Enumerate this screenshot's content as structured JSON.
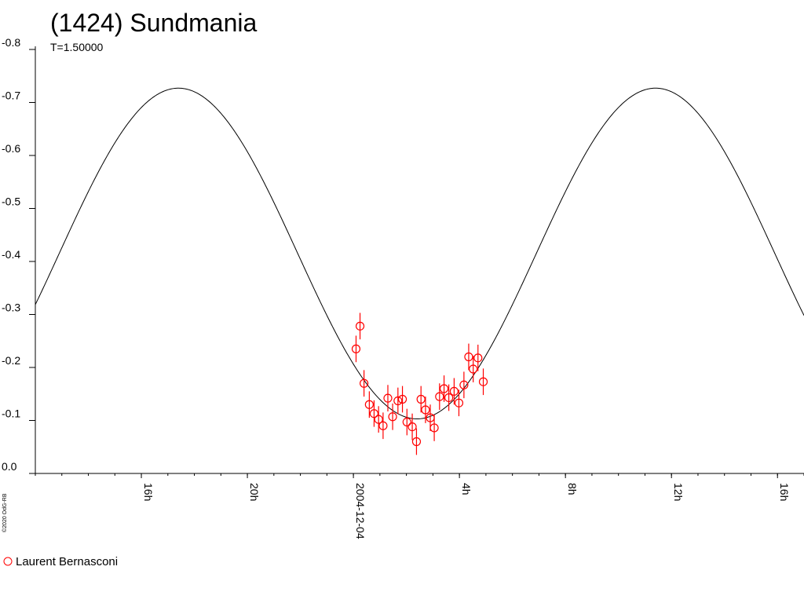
{
  "chart_data": {
    "type": "scatter",
    "title": "(1424) Sundmania",
    "subtitle": "T=1.50000",
    "copyright": "©2020 OdG-RB",
    "y_ticks": [
      "-0.8",
      "-0.7",
      "-0.6",
      "-0.5",
      "-0.4",
      "-0.3",
      "-0.2",
      "-0.1",
      "0.0"
    ],
    "y_range": [
      0.0,
      -0.8
    ],
    "x_range_hours": [
      -4.0,
      25.0
    ],
    "x_tick_labels": [
      {
        "label": "16h",
        "hour": 0
      },
      {
        "label": "20h",
        "hour": 4
      },
      {
        "label": "2004-12-04",
        "hour": 8
      },
      {
        "label": "4h",
        "hour": 12
      },
      {
        "label": "8h",
        "hour": 16
      },
      {
        "label": "12h",
        "hour": 20
      },
      {
        "label": "16h",
        "hour": 24
      }
    ],
    "minor_tick_step_hours": 1,
    "fit_curve": {
      "period_hours": 18.0,
      "mean": -0.415,
      "amplitude": 0.312,
      "max_at_hour": 1.4
    },
    "series": [
      {
        "name": "Laurent Bernasconi",
        "color": "#ff0000",
        "marker": "circle",
        "points": [
          {
            "x": 8.1,
            "y": -0.235,
            "err": 0.025
          },
          {
            "x": 8.25,
            "y": -0.278,
            "err": 0.025
          },
          {
            "x": 8.4,
            "y": -0.17,
            "err": 0.025
          },
          {
            "x": 8.6,
            "y": -0.13,
            "err": 0.025
          },
          {
            "x": 8.78,
            "y": -0.113,
            "err": 0.025
          },
          {
            "x": 8.95,
            "y": -0.102,
            "err": 0.025
          },
          {
            "x": 9.12,
            "y": -0.09,
            "err": 0.025
          },
          {
            "x": 9.3,
            "y": -0.142,
            "err": 0.025
          },
          {
            "x": 9.48,
            "y": -0.107,
            "err": 0.025
          },
          {
            "x": 9.68,
            "y": -0.137,
            "err": 0.025
          },
          {
            "x": 9.85,
            "y": -0.14,
            "err": 0.025
          },
          {
            "x": 10.02,
            "y": -0.097,
            "err": 0.025
          },
          {
            "x": 10.22,
            "y": -0.088,
            "err": 0.025
          },
          {
            "x": 10.38,
            "y": -0.06,
            "err": 0.025
          },
          {
            "x": 10.55,
            "y": -0.14,
            "err": 0.025
          },
          {
            "x": 10.72,
            "y": -0.12,
            "err": 0.025
          },
          {
            "x": 10.9,
            "y": -0.105,
            "err": 0.025
          },
          {
            "x": 11.05,
            "y": -0.086,
            "err": 0.025
          },
          {
            "x": 11.25,
            "y": -0.145,
            "err": 0.025
          },
          {
            "x": 11.42,
            "y": -0.16,
            "err": 0.025
          },
          {
            "x": 11.6,
            "y": -0.143,
            "err": 0.025
          },
          {
            "x": 11.8,
            "y": -0.155,
            "err": 0.025
          },
          {
            "x": 11.98,
            "y": -0.133,
            "err": 0.025
          },
          {
            "x": 12.17,
            "y": -0.167,
            "err": 0.025
          },
          {
            "x": 12.35,
            "y": -0.22,
            "err": 0.025
          },
          {
            "x": 12.52,
            "y": -0.197,
            "err": 0.025
          },
          {
            "x": 12.7,
            "y": -0.218,
            "err": 0.025
          },
          {
            "x": 12.9,
            "y": -0.173,
            "err": 0.025
          }
        ]
      }
    ]
  }
}
